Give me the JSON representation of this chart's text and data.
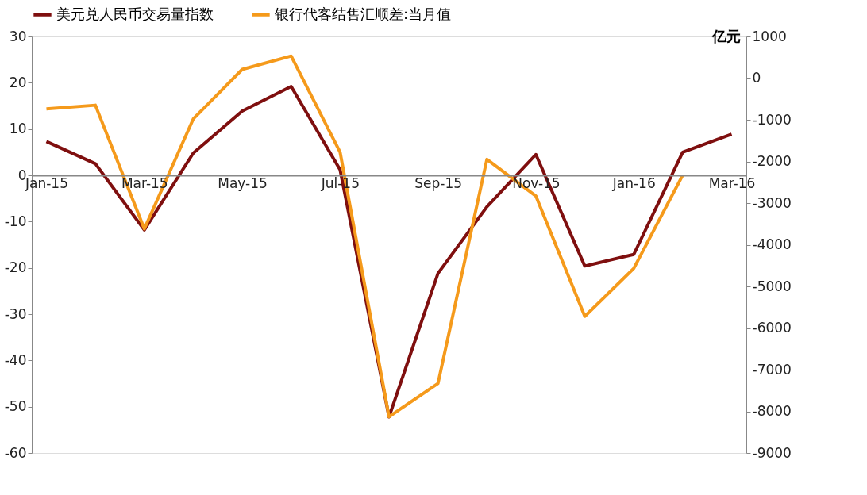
{
  "chart_data": {
    "type": "line",
    "categories": [
      "Jan-15",
      null,
      "Mar-15",
      null,
      "May-15",
      null,
      "Jul-15",
      null,
      "Sep-15",
      null,
      "Nov-15",
      null,
      "Jan-16",
      null,
      "Mar-16"
    ],
    "series": [
      {
        "name": "美元兑人民币交易量指数",
        "color": "#7f0f0f",
        "values": [
          7.3,
          2.5,
          -11.8,
          4.8,
          13.9,
          19.2,
          1.2,
          -52.2,
          -21.2,
          -6.8,
          4.5,
          -19.6,
          -17.1,
          5.0,
          8.9
        ]
      },
      {
        "name": "银行代客结售汇顺差:当月值",
        "color": "#f59a1b",
        "axis": "y2",
        "values": [
          -740,
          -650,
          -3620,
          -980,
          210,
          530,
          -1780,
          -8130,
          -7330,
          -1950,
          -2830,
          -5720,
          -4570,
          -2330,
          null
        ]
      }
    ],
    "y2label": "亿元",
    "ylim": [
      -60,
      30
    ],
    "yticks": [
      -60,
      -50,
      -40,
      -30,
      -20,
      -10,
      0,
      10,
      20,
      30
    ],
    "y2lim": [
      -9000,
      1000
    ],
    "y2ticks": [
      -9000,
      -8000,
      -7000,
      -6000,
      -5000,
      -4000,
      -3000,
      -2000,
      -1000,
      0,
      1000
    ],
    "legend": "top",
    "grid": false,
    "marker": "none",
    "line_style": "solid"
  }
}
